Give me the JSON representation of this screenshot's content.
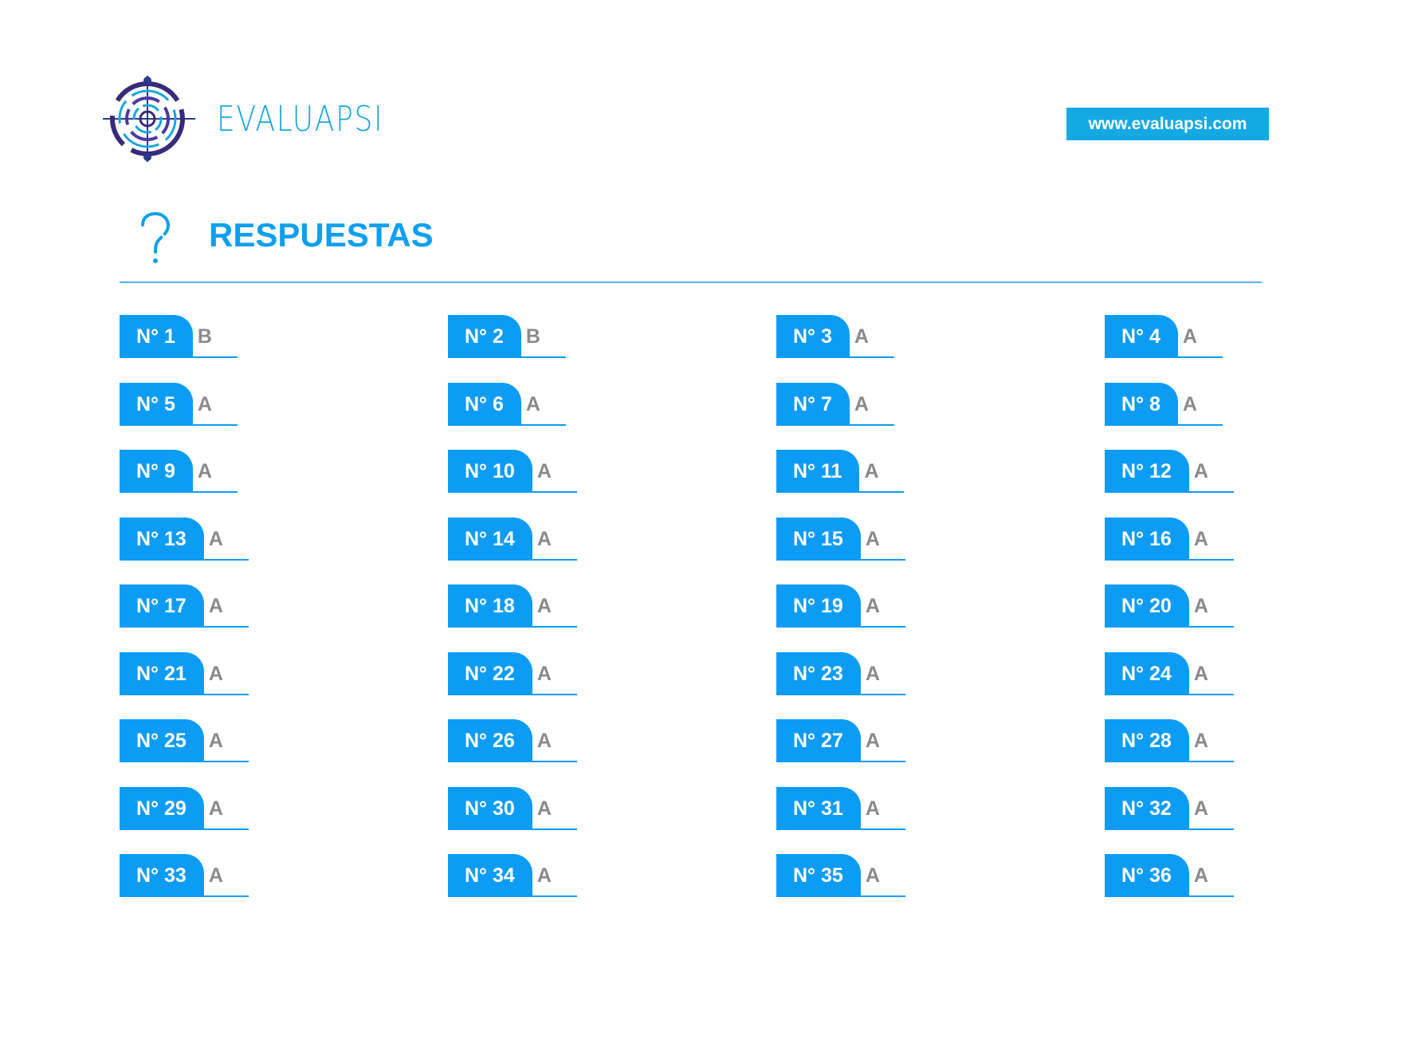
{
  "header": {
    "brand": "EVALUAPSI",
    "website": "www.evaluapsi.com",
    "colors": {
      "brand": "#1aa6dc",
      "accent": "#0d9cf5",
      "logo_dark": "#3a2a7a"
    }
  },
  "section": {
    "title": "RESPUESTAS",
    "icon": "question-mark-icon"
  },
  "answers": [
    {
      "label": "N° 1",
      "value": "B"
    },
    {
      "label": "N° 2",
      "value": "B"
    },
    {
      "label": "N° 3",
      "value": "A"
    },
    {
      "label": "N° 4",
      "value": "A"
    },
    {
      "label": "N° 5",
      "value": "A"
    },
    {
      "label": "N° 6",
      "value": "A"
    },
    {
      "label": "N° 7",
      "value": "A"
    },
    {
      "label": "N° 8",
      "value": "A"
    },
    {
      "label": "N° 9",
      "value": "A"
    },
    {
      "label": "N° 10",
      "value": "A"
    },
    {
      "label": "N° 11",
      "value": "A"
    },
    {
      "label": "N° 12",
      "value": "A"
    },
    {
      "label": "N° 13",
      "value": "A"
    },
    {
      "label": "N° 14",
      "value": "A"
    },
    {
      "label": "N° 15",
      "value": "A"
    },
    {
      "label": "N° 16",
      "value": "A"
    },
    {
      "label": "N° 17",
      "value": "A"
    },
    {
      "label": "N° 18",
      "value": "A"
    },
    {
      "label": "N° 19",
      "value": "A"
    },
    {
      "label": "N° 20",
      "value": "A"
    },
    {
      "label": "N° 21",
      "value": "A"
    },
    {
      "label": "N° 22",
      "value": "A"
    },
    {
      "label": "N° 23",
      "value": "A"
    },
    {
      "label": "N° 24",
      "value": "A"
    },
    {
      "label": "N° 25",
      "value": "A"
    },
    {
      "label": "N° 26",
      "value": "A"
    },
    {
      "label": "N° 27",
      "value": "A"
    },
    {
      "label": "N° 28",
      "value": "A"
    },
    {
      "label": "N° 29",
      "value": "A"
    },
    {
      "label": "N° 30",
      "value": "A"
    },
    {
      "label": "N° 31",
      "value": "A"
    },
    {
      "label": "N° 32",
      "value": "A"
    },
    {
      "label": "N° 33",
      "value": "A"
    },
    {
      "label": "N° 34",
      "value": "A"
    },
    {
      "label": "N° 35",
      "value": "A"
    },
    {
      "label": "N° 36",
      "value": "A"
    }
  ]
}
